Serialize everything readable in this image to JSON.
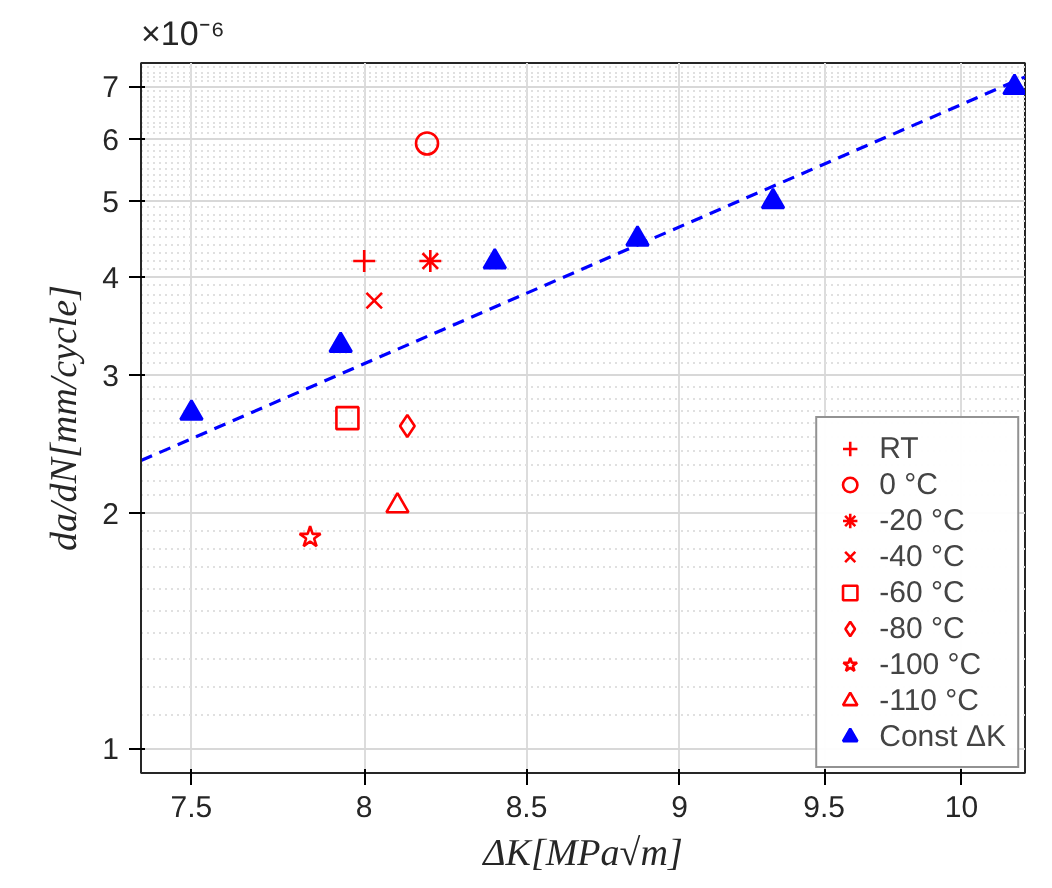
{
  "chart_data": {
    "type": "scatter",
    "xlabel": "ΔK[MPa√m]",
    "ylabel": "da/dN[mm/cycle]",
    "annotations": [
      "×10⁻⁶"
    ],
    "log": "xy",
    "grid": true,
    "legend": "bottom right",
    "xlim": [
      7.36,
      10.24
    ],
    "xticks": [
      7.5,
      8,
      8.5,
      9,
      9.5,
      10
    ],
    "ylim": [
      0.93,
      7.5
    ],
    "yticks": [
      1,
      2,
      3,
      4,
      5,
      6,
      7
    ],
    "series": [
      {
        "name": "RT",
        "color": "#ff0000",
        "marker": "cross",
        "x": [
          8.0
        ],
        "values": [
          4.19
        ]
      },
      {
        "name": "0 °C",
        "color": "#ff0000",
        "marker": "circle",
        "x": [
          8.19
        ],
        "values": [
          5.92
        ]
      },
      {
        "name": "-20 °C",
        "color": "#ff0000",
        "x": [
          8.2
        ],
        "values": [
          4.19
        ]
      },
      {
        "name": "-40 °C",
        "color": "#ff0000",
        "marker": "x",
        "x": [
          8.03
        ],
        "values": [
          3.73
        ]
      },
      {
        "name": "-60 °C",
        "color": "#ff0000",
        "marker": "square",
        "x": [
          7.95
        ],
        "values": [
          2.64
        ]
      },
      {
        "name": "-80 °C",
        "color": "#ff0000",
        "marker": "diamond",
        "x": [
          8.13
        ],
        "values": [
          2.58
        ]
      },
      {
        "name": "-100 °C",
        "color": "#ff0000",
        "marker": "star",
        "x": [
          7.84
        ],
        "values": [
          1.86
        ]
      },
      {
        "name": "-110 °C",
        "color": "#ff0000",
        "marker": "triangle",
        "x": [
          8.1
        ],
        "values": [
          2.04
        ]
      },
      {
        "name": "Const ΔK",
        "color": "#0000ff",
        "marker": "triangle",
        "x": [
          7.5,
          7.93,
          8.4,
          8.86,
          9.32,
          10.2
        ],
        "values": [
          2.68,
          3.27,
          4.18,
          4.47,
          4.99,
          6.98
        ]
      },
      {
        "type": "line",
        "color": "#0000ff",
        "line_style": "dashed",
        "x": [
          7.36,
          10.24
        ],
        "values": [
          2.33,
          7.2
        ]
      }
    ]
  }
}
